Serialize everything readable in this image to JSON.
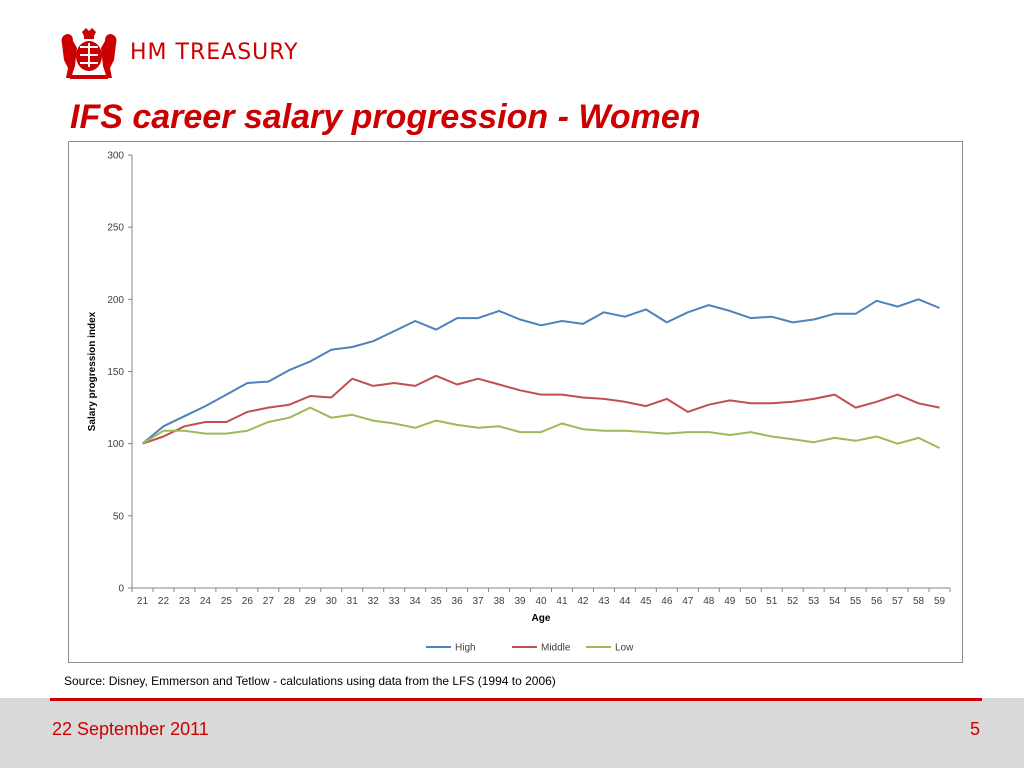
{
  "header": {
    "brand": "HM TREASURY",
    "title": "IFS career salary progression - Women"
  },
  "colors": {
    "brand_red": "#cc0000",
    "high": "#4f81bd",
    "middle": "#c0504d",
    "low": "#9bbb59"
  },
  "icons": {
    "logo": "royal-crest-icon"
  },
  "chart_data": {
    "type": "line",
    "title": "",
    "xlabel": "Age",
    "ylabel": "Salary progression index",
    "ylim": [
      0,
      300
    ],
    "yticks": [
      0,
      50,
      100,
      150,
      200,
      250,
      300
    ],
    "grid": false,
    "legend_position": "bottom",
    "x": [
      21,
      22,
      23,
      24,
      25,
      26,
      27,
      28,
      29,
      30,
      31,
      32,
      33,
      34,
      35,
      36,
      37,
      38,
      39,
      40,
      41,
      42,
      43,
      44,
      45,
      46,
      47,
      48,
      49,
      50,
      51,
      52,
      53,
      54,
      55,
      56,
      57,
      58,
      59
    ],
    "series": [
      {
        "name": "High",
        "values": [
          100,
          112,
          119,
          126,
          134,
          142,
          143,
          151,
          157,
          165,
          167,
          171,
          178,
          185,
          179,
          187,
          187,
          192,
          186,
          182,
          185,
          183,
          191,
          188,
          193,
          184,
          191,
          196,
          192,
          187,
          188,
          184,
          186,
          190,
          190,
          199,
          195,
          200,
          194
        ]
      },
      {
        "name": "Middle",
        "values": [
          100,
          105,
          112,
          115,
          115,
          122,
          125,
          127,
          133,
          132,
          145,
          140,
          142,
          140,
          147,
          141,
          145,
          141,
          137,
          134,
          134,
          132,
          131,
          129,
          126,
          131,
          122,
          127,
          130,
          128,
          128,
          129,
          131,
          134,
          125,
          129,
          134,
          128,
          125
        ]
      },
      {
        "name": "Low",
        "values": [
          100,
          109,
          109,
          107,
          107,
          109,
          115,
          118,
          125,
          118,
          120,
          116,
          114,
          111,
          116,
          113,
          111,
          112,
          108,
          108,
          114,
          110,
          109,
          109,
          108,
          107,
          108,
          108,
          106,
          108,
          105,
          103,
          101,
          104,
          102,
          105,
          100,
          104,
          97
        ]
      }
    ]
  },
  "source": "Source: Disney, Emmerson and Tetlow - calculations using data from the LFS (1994 to 2006)",
  "footer": {
    "date": "22 September 2011",
    "page": "5"
  }
}
